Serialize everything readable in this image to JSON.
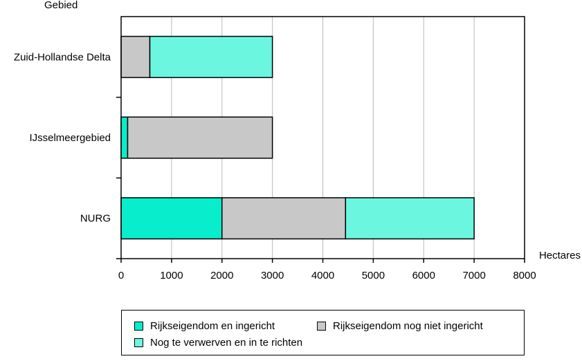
{
  "chart_data": {
    "type": "bar",
    "orientation": "horizontal",
    "stacked": true,
    "ylabel": "Gebied",
    "xlabel": "Hectares",
    "xlim": [
      0,
      8000
    ],
    "xticks": [
      "0",
      "1000",
      "2000",
      "3000",
      "4000",
      "5000",
      "6000",
      "7000",
      "8000"
    ],
    "grid": true,
    "legend_position": "bottom",
    "categories": [
      "Zuid-Hollandse Delta",
      "IJsselmeergebied",
      "NURG"
    ],
    "series": [
      {
        "name": "Rijkseigendom en ingericht",
        "color": "#08EDCB",
        "values": [
          0,
          130,
          2000
        ]
      },
      {
        "name": "Rijkseigendom nog niet ingericht",
        "color": "#C8C8C8",
        "values": [
          570,
          2870,
          2450
        ]
      },
      {
        "name": "Nog te verwerven en in te richten",
        "color": "#6BF6E0",
        "values": [
          2430,
          0,
          2550
        ]
      }
    ]
  }
}
